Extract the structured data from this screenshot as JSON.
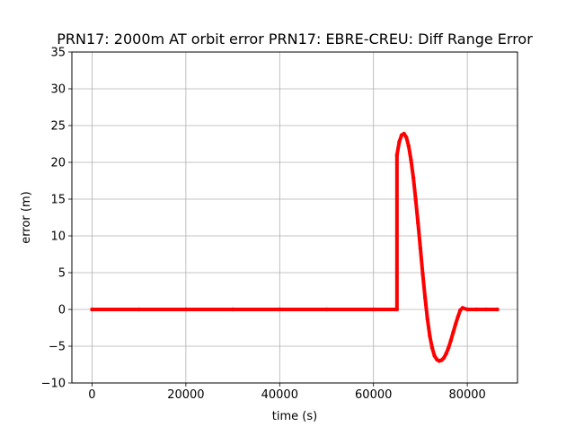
{
  "chart_data": {
    "type": "scatter",
    "title": "PRN17: 2000m AT orbit error PRN17: EBRE-CREU: Diff Range Error",
    "xlabel": "time (s)",
    "ylabel": "error (m)",
    "xlim": [
      -4300,
      90700
    ],
    "ylim": [
      -10,
      35
    ],
    "xticks": [
      0,
      20000,
      40000,
      60000,
      80000
    ],
    "xtick_labels": [
      "0",
      "20000",
      "40000",
      "60000",
      "80000"
    ],
    "yticks": [
      -10,
      -5,
      0,
      5,
      10,
      15,
      20,
      25,
      30,
      35
    ],
    "ytick_labels": [
      "−10",
      "−5",
      "0",
      "5",
      "10",
      "15",
      "20",
      "25",
      "30",
      "35"
    ],
    "grid": true,
    "legend": "none",
    "series": [
      {
        "color": "#ff0000",
        "marker": "dot",
        "x": [
          0,
          10000,
          20000,
          30000,
          40000,
          50000,
          60000,
          65000,
          65000,
          65500,
          66000,
          66500,
          67000,
          67500,
          68000,
          68500,
          69000,
          69500,
          70000,
          70500,
          71000,
          71500,
          72000,
          72500,
          73000,
          73500,
          74000,
          74500,
          75000,
          75500,
          76000,
          76500,
          77000,
          77500,
          78000,
          78500,
          79000,
          80000,
          82000,
          84000,
          86400
        ],
        "y": [
          0,
          0,
          0,
          0,
          0,
          0,
          0,
          0,
          21.0,
          22.8,
          23.7,
          23.9,
          23.4,
          22.2,
          20.3,
          17.9,
          14.9,
          11.7,
          8.3,
          4.8,
          1.6,
          -1.3,
          -3.6,
          -5.2,
          -6.3,
          -6.8,
          -7.0,
          -6.9,
          -6.6,
          -6.0,
          -5.2,
          -4.2,
          -3.1,
          -2.0,
          -1.0,
          -0.1,
          0.2,
          0,
          0,
          0,
          0
        ]
      }
    ]
  }
}
